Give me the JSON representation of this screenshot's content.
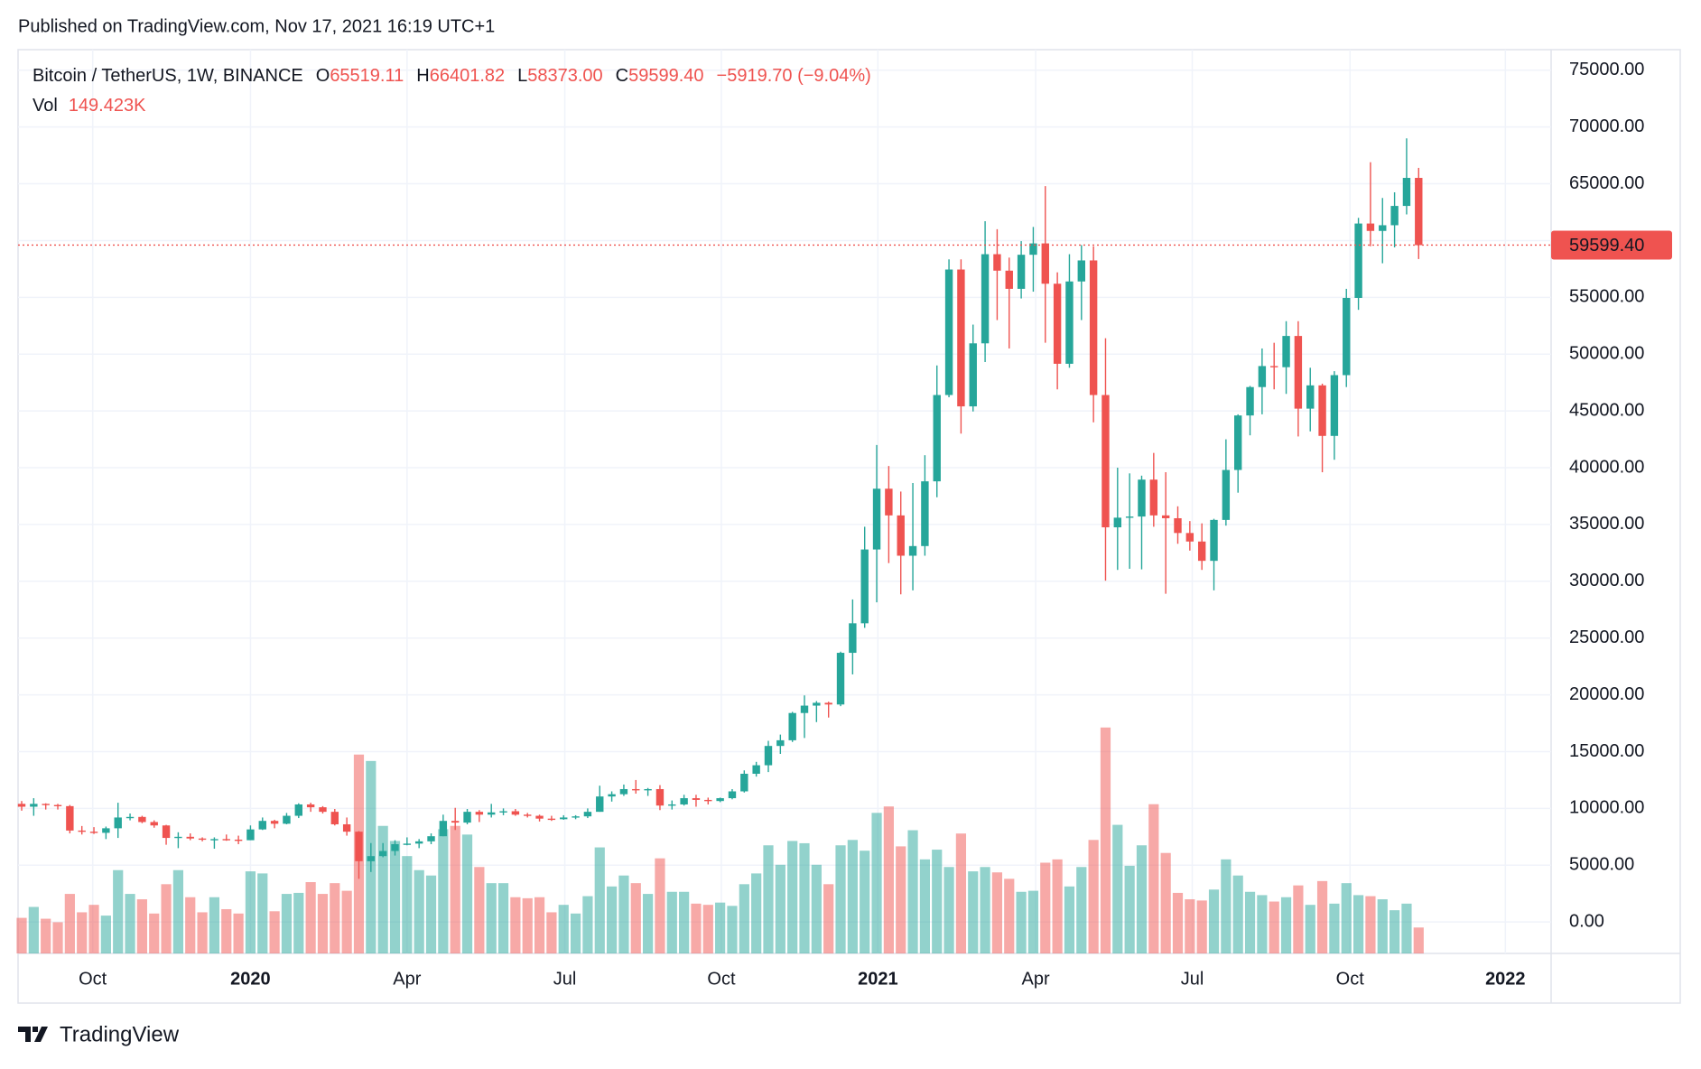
{
  "header": {
    "published": "Published on TradingView.com, Nov 17, 2021 16:19 UTC+1"
  },
  "footer": {
    "brand": "TradingView"
  },
  "chart_data": {
    "type": "candlestick",
    "legend": {
      "symbol": "Bitcoin / TetherUS, 1W, BINANCE",
      "open_key": "O",
      "open": "65519.11",
      "high_key": "H",
      "high": "66401.82",
      "low_key": "L",
      "low": "58373.00",
      "close_key": "C",
      "close": "59599.40",
      "change": "−5919.70 (−9.04%)",
      "volume_key": "Vol",
      "volume": "149.423K"
    },
    "last_price_label": "59599.40",
    "up_color": "#26a69a",
    "down_color": "#ef5350",
    "grid": true,
    "ylim": [
      -2770,
      76810
    ],
    "yticks": [
      {
        "value": 0,
        "label": "0.00"
      },
      {
        "value": 5000,
        "label": "5000.00"
      },
      {
        "value": 10000,
        "label": "10000.00"
      },
      {
        "value": 15000,
        "label": "15000.00"
      },
      {
        "value": 20000,
        "label": "20000.00"
      },
      {
        "value": 25000,
        "label": "25000.00"
      },
      {
        "value": 30000,
        "label": "30000.00"
      },
      {
        "value": 35000,
        "label": "35000.00"
      },
      {
        "value": 40000,
        "label": "40000.00"
      },
      {
        "value": 45000,
        "label": "45000.00"
      },
      {
        "value": 50000,
        "label": "50000.00"
      },
      {
        "value": 55000,
        "label": "55000.00"
      },
      {
        "value": 60000,
        "label": "60000.00"
      },
      {
        "value": 65000,
        "label": "65000.00"
      },
      {
        "value": 70000,
        "label": "70000.00"
      },
      {
        "value": 75000,
        "label": "75000.00"
      }
    ],
    "xlim": [
      -0.3,
      127
    ],
    "xticks": [
      {
        "value": 5.9,
        "label": "Oct"
      },
      {
        "value": 19.0,
        "label": "2020"
      },
      {
        "value": 32.0,
        "label": "Apr"
      },
      {
        "value": 45.1,
        "label": "Jul"
      },
      {
        "value": 58.1,
        "label": "Oct"
      },
      {
        "value": 71.1,
        "label": "2021"
      },
      {
        "value": 84.2,
        "label": "Apr"
      },
      {
        "value": 97.2,
        "label": "Jul"
      },
      {
        "value": 110.3,
        "label": "Oct"
      },
      {
        "value": 123.2,
        "label": "2022"
      }
    ],
    "open": [
      10400,
      10150,
      10400,
      10300,
      10200,
      8050,
      7950,
      7850,
      8250,
      9200,
      9250,
      8800,
      8500,
      7400,
      7500,
      7350,
      7250,
      7300,
      7250,
      7200,
      8150,
      8900,
      8650,
      9350,
      10350,
      10100,
      9700,
      8600,
      7950,
      5350,
      5800,
      6250,
      6850,
      6900,
      7100,
      7550,
      8900,
      8750,
      9700,
      9450,
      9650,
      9750,
      9450,
      9350,
      9100,
      9050,
      9200,
      9300,
      9700,
      11050,
      11250,
      11700,
      11650,
      11700,
      10250,
      10350,
      10900,
      10750,
      10650,
      10900,
      11500,
      13050,
      13800,
      15500,
      16000,
      18400,
      19050,
      19300,
      19150,
      23700,
      26300,
      32800,
      38150,
      35800,
      32250,
      33100,
      38800,
      46400,
      57450,
      45400,
      50950,
      58800,
      57350,
      55750,
      58750,
      59750,
      56200,
      49150,
      56400,
      58250,
      46400,
      34750,
      35600,
      35700,
      38950,
      35800,
      35550,
      34250,
      33500,
      31800,
      35400,
      39800,
      44600,
      47100,
      48950,
      48850,
      51600,
      45200,
      47250,
      42800,
      48150,
      54950,
      61500,
      60850,
      61350,
      63050,
      65519.11
    ],
    "high": [
      10650,
      10900,
      10450,
      10400,
      10300,
      8450,
      8350,
      8400,
      10500,
      9550,
      9350,
      8950,
      8550,
      7900,
      7800,
      7450,
      7450,
      7700,
      7600,
      8500,
      9200,
      9000,
      9600,
      10450,
      10500,
      10200,
      9950,
      9200,
      8000,
      6950,
      6950,
      7200,
      7450,
      7300,
      7800,
      9450,
      10050,
      9950,
      9850,
      10400,
      10000,
      9950,
      9600,
      9450,
      9350,
      9400,
      9400,
      10000,
      12000,
      11500,
      12100,
      12500,
      11800,
      12050,
      10700,
      11200,
      11200,
      10950,
      10950,
      11700,
      13350,
      14100,
      15950,
      16500,
      18500,
      19950,
      19450,
      19400,
      23800,
      28400,
      34800,
      42000,
      40150,
      37900,
      38650,
      41100,
      49000,
      58350,
      58350,
      52600,
      61700,
      61000,
      58500,
      59950,
      61200,
      64800,
      57200,
      58800,
      59600,
      59500,
      51400,
      40000,
      39500,
      39300,
      41300,
      39600,
      36600,
      35300,
      35100,
      35500,
      42500,
      44700,
      47200,
      50500,
      51000,
      52900,
      52900,
      48800,
      47400,
      48500,
      55750,
      62000,
      66900,
      63750,
      64250,
      69000,
      66401.82
    ],
    "low": [
      9800,
      9350,
      9900,
      9900,
      7800,
      7700,
      7750,
      7300,
      7400,
      8950,
      8700,
      8300,
      6800,
      6500,
      7200,
      7100,
      6450,
      7150,
      6850,
      7200,
      8100,
      8250,
      8600,
      9150,
      9700,
      9550,
      8500,
      7600,
      3800,
      4400,
      5700,
      5850,
      6750,
      6500,
      6850,
      7550,
      8100,
      8600,
      8800,
      9200,
      9400,
      9350,
      9200,
      8850,
      8900,
      9000,
      9050,
      9150,
      9700,
      10600,
      11100,
      11300,
      11100,
      9850,
      9900,
      10250,
      10150,
      10350,
      10550,
      10800,
      11400,
      12800,
      13200,
      14800,
      15850,
      16200,
      17600,
      18000,
      19000,
      21800,
      25900,
      28150,
      31600,
      28850,
      29200,
      32250,
      37400,
      46200,
      43000,
      44950,
      49300,
      53000,
      50500,
      54900,
      55500,
      51000,
      46900,
      48800,
      53000,
      44000,
      30050,
      31000,
      31100,
      31050,
      34800,
      28900,
      33300,
      32700,
      31000,
      29200,
      34900,
      37800,
      42850,
      44700,
      46900,
      46500,
      42750,
      43200,
      39600,
      40700,
      47100,
      53900,
      59500,
      58000,
      59400,
      62300,
      58373
    ],
    "close": [
      10150,
      10400,
      10300,
      10200,
      8050,
      7950,
      7850,
      8250,
      9200,
      9250,
      8800,
      8500,
      7400,
      7500,
      7350,
      7250,
      7300,
      7250,
      7200,
      8150,
      8900,
      8650,
      9350,
      10350,
      10100,
      9700,
      8600,
      7950,
      5350,
      5800,
      6250,
      6850,
      6900,
      7100,
      7550,
      8900,
      8750,
      9700,
      9450,
      9650,
      9750,
      9450,
      9350,
      9100,
      9050,
      9200,
      9300,
      9700,
      11050,
      11250,
      11700,
      11650,
      11700,
      10250,
      10350,
      10900,
      10750,
      10650,
      10900,
      11500,
      13050,
      13800,
      15500,
      16000,
      18400,
      19050,
      19300,
      19150,
      23700,
      26300,
      32800,
      38150,
      35800,
      32250,
      33100,
      38800,
      46400,
      57450,
      45400,
      50950,
      58800,
      57350,
      55750,
      58750,
      59750,
      56200,
      49150,
      56400,
      58250,
      46400,
      34750,
      35600,
      35700,
      38950,
      35800,
      35550,
      34250,
      33500,
      31800,
      35400,
      39800,
      44600,
      47100,
      48950,
      48850,
      51600,
      45200,
      47250,
      42800,
      48150,
      54950,
      61500,
      60850,
      61350,
      63050,
      65519.11,
      59599.4
    ],
    "volume": [
      205,
      268,
      200,
      180,
      343,
      237,
      280,
      218,
      480,
      343,
      312,
      230,
      399,
      480,
      324,
      237,
      324,
      255,
      230,
      473,
      461,
      243,
      343,
      349,
      411,
      343,
      405,
      361,
      1146,
      1109,
      735,
      648,
      561,
      480,
      449,
      716,
      735,
      685,
      498,
      405,
      405,
      324,
      318,
      324,
      237,
      280,
      230,
      330,
      611,
      386,
      449,
      405,
      343,
      548,
      355,
      355,
      287,
      280,
      293,
      274,
      399,
      461,
      623,
      511,
      648,
      635,
      511,
      399,
      623,
      654,
      592,
      810,
      847,
      617,
      710,
      542,
      598,
      498,
      691,
      473,
      498,
      467,
      430,
      355,
      361,
      523,
      542,
      386,
      498,
      654,
      1302,
      741,
      505,
      623,
      860,
      579,
      349,
      312,
      305,
      368,
      542,
      449,
      355,
      336,
      299,
      324,
      392,
      280,
      417,
      287,
      405,
      336,
      330,
      312,
      249,
      287,
      149.423
    ]
  }
}
